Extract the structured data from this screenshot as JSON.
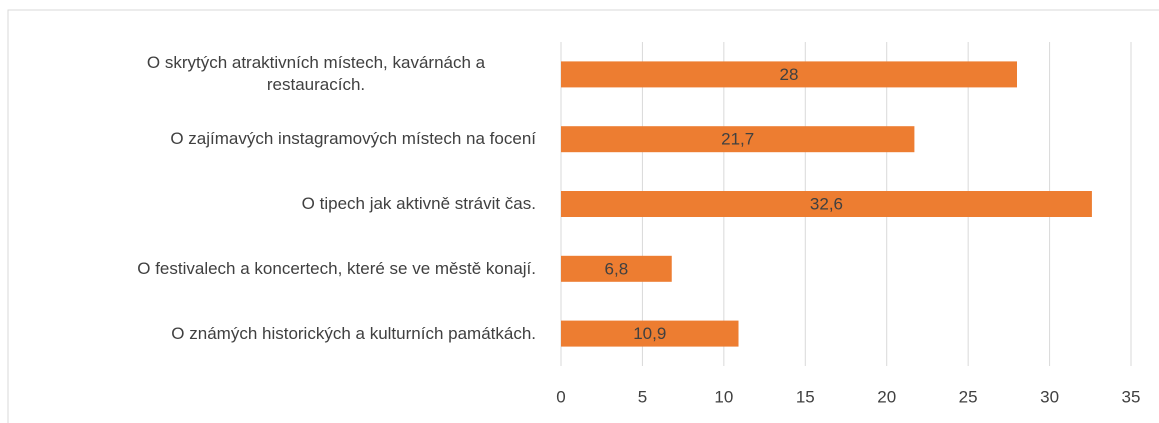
{
  "chart_data": {
    "type": "bar",
    "orientation": "horizontal",
    "categories": [
      "O skrytých atraktivních místech, kavárnách a restauracích.",
      "O zajímavých instagramových místech na focení",
      "O tipech jak aktivně strávit čas.",
      "O festivalech a koncertech, které se ve městě konají.",
      "O známých historických a kulturních památkách."
    ],
    "values": [
      28,
      21.7,
      32.6,
      6.8,
      10.9
    ],
    "value_labels": [
      "28",
      "21,7",
      "32,6",
      "6,8",
      "10,9"
    ],
    "color": "#ed7d31",
    "xlim": [
      0,
      35
    ],
    "xticks": [
      0,
      5,
      10,
      15,
      20,
      25,
      30,
      35
    ],
    "grid": true
  }
}
